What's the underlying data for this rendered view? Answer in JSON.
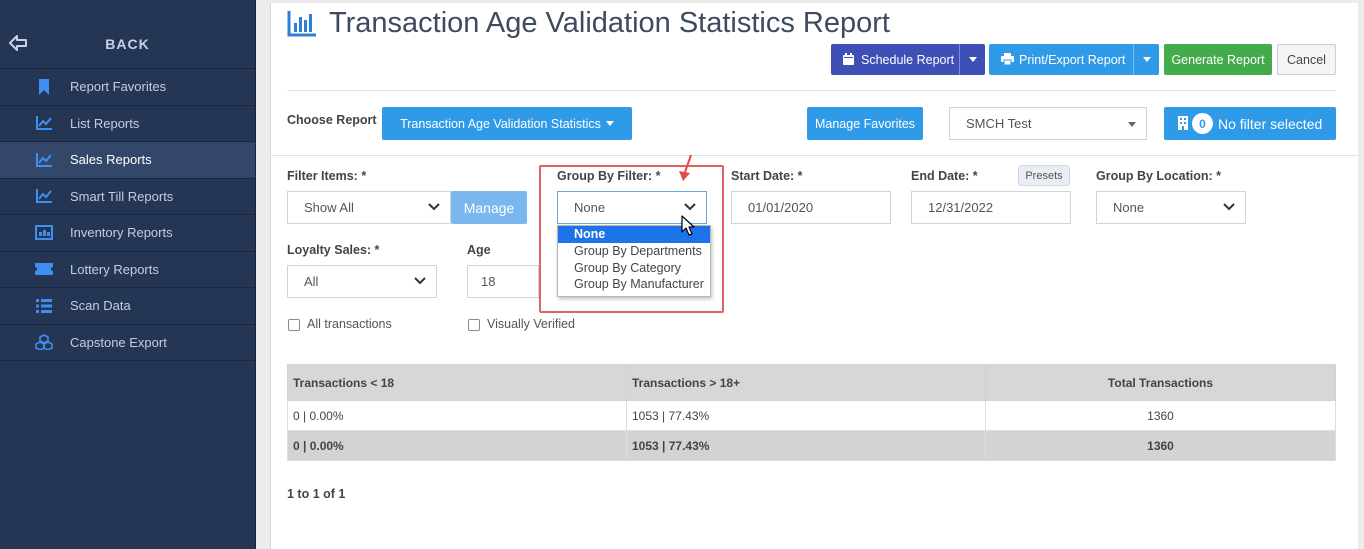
{
  "sidebar": {
    "back_label": "BACK",
    "items": [
      {
        "label": "Report Favorites",
        "icon": "bookmark-icon"
      },
      {
        "label": "List Reports",
        "icon": "line-chart-icon"
      },
      {
        "label": "Sales Reports",
        "icon": "line-chart-icon",
        "active": true
      },
      {
        "label": "Smart Till Reports",
        "icon": "line-chart-icon"
      },
      {
        "label": "Inventory Reports",
        "icon": "inventory-icon"
      },
      {
        "label": "Lottery Reports",
        "icon": "ticket-icon"
      },
      {
        "label": "Scan Data",
        "icon": "list-icon"
      },
      {
        "label": "Capstone Export",
        "icon": "cubes-icon"
      }
    ]
  },
  "header": {
    "title": "Transaction Age Validation Statistics Report",
    "schedule_label": "Schedule Report",
    "print_label": "Print/Export Report",
    "generate_label": "Generate Report",
    "cancel_label": "Cancel"
  },
  "report_bar": {
    "choose_label": "Choose Report",
    "selected_report": "Transaction Age Validation Statistics",
    "manage_favorites_label": "Manage Favorites",
    "store_value": "SMCH Test",
    "filter_count": "0",
    "filter_label": "No filter selected"
  },
  "filters": {
    "filter_items_label": "Filter Items: *",
    "filter_items_value": "Show All",
    "manage_label": "Manage",
    "group_by_label": "Group By Filter: *",
    "group_by_value": "None",
    "group_by_options": [
      "None",
      "Group By Departments",
      "Group By Category",
      "Group By Manufacturer"
    ],
    "start_date_label": "Start Date: *",
    "start_date_value": "01/01/2020",
    "end_date_label": "End Date: *",
    "presets_label": "Presets",
    "end_date_value": "12/31/2022",
    "group_location_label": "Group By Location: *",
    "group_location_value": "None",
    "loyalty_label": "Loyalty Sales: *",
    "loyalty_value": "All",
    "age_label": "Age",
    "age_value": "18",
    "all_transactions_label": "All transactions",
    "visually_verified_label": "Visually Verified"
  },
  "table": {
    "headers": [
      "Transactions < 18",
      "Transactions > 18+",
      "Total Transactions"
    ],
    "rows": [
      [
        "0 | 0.00%",
        "1053 | 77.43%",
        "1360"
      ]
    ],
    "total": [
      "0 | 0.00%",
      "1053 | 77.43%",
      "1360"
    ]
  },
  "pager": {
    "text": "1 to 1 of 1"
  },
  "colors": {
    "sidebar_bg": "#253554",
    "indigo": "#3e4fb5",
    "blue": "#2f9be8",
    "green": "#43ab4c",
    "highlight": "#e26161",
    "dropdown_selected": "#1c74e8"
  }
}
